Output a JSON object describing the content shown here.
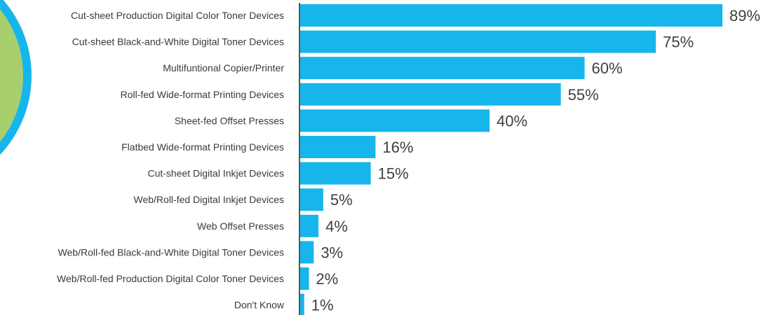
{
  "colors": {
    "bar": "#16b6ec",
    "axis": "#555555",
    "label": "#3a3a3a",
    "value_label": "#404040",
    "circle_outer": "#16b6ec",
    "circle_inner": "#a8cf6e"
  },
  "chart_data": {
    "type": "bar",
    "orientation": "horizontal",
    "categories": [
      "Cut-sheet Production Digital Color Toner Devices",
      "Cut-sheet Black-and-White Digital Toner Devices",
      "Multifuntional Copier/Printer",
      "Roll-fed Wide-format Printing Devices",
      "Sheet-fed Offset Presses",
      "Flatbed Wide-format Printing Devices",
      "Cut-sheet Digital Inkjet Devices",
      "Web/Roll-fed Digital Inkjet Devices",
      "Web Offset Presses",
      "Web/Roll-fed Black-and-White Digital Toner Devices",
      "Web/Roll-fed Production Digital Color Toner Devices",
      "Don't Know"
    ],
    "values": [
      89,
      75,
      60,
      55,
      40,
      16,
      15,
      5,
      4,
      3,
      2,
      1
    ],
    "value_labels": [
      "89%",
      "75%",
      "60%",
      "55%",
      "40%",
      "16%",
      "15%",
      "5%",
      "4%",
      "3%",
      "2%",
      "1%"
    ],
    "title": "",
    "xlabel": "",
    "ylabel": "",
    "xlim": [
      0,
      89
    ],
    "grid": false,
    "legend": "none"
  }
}
